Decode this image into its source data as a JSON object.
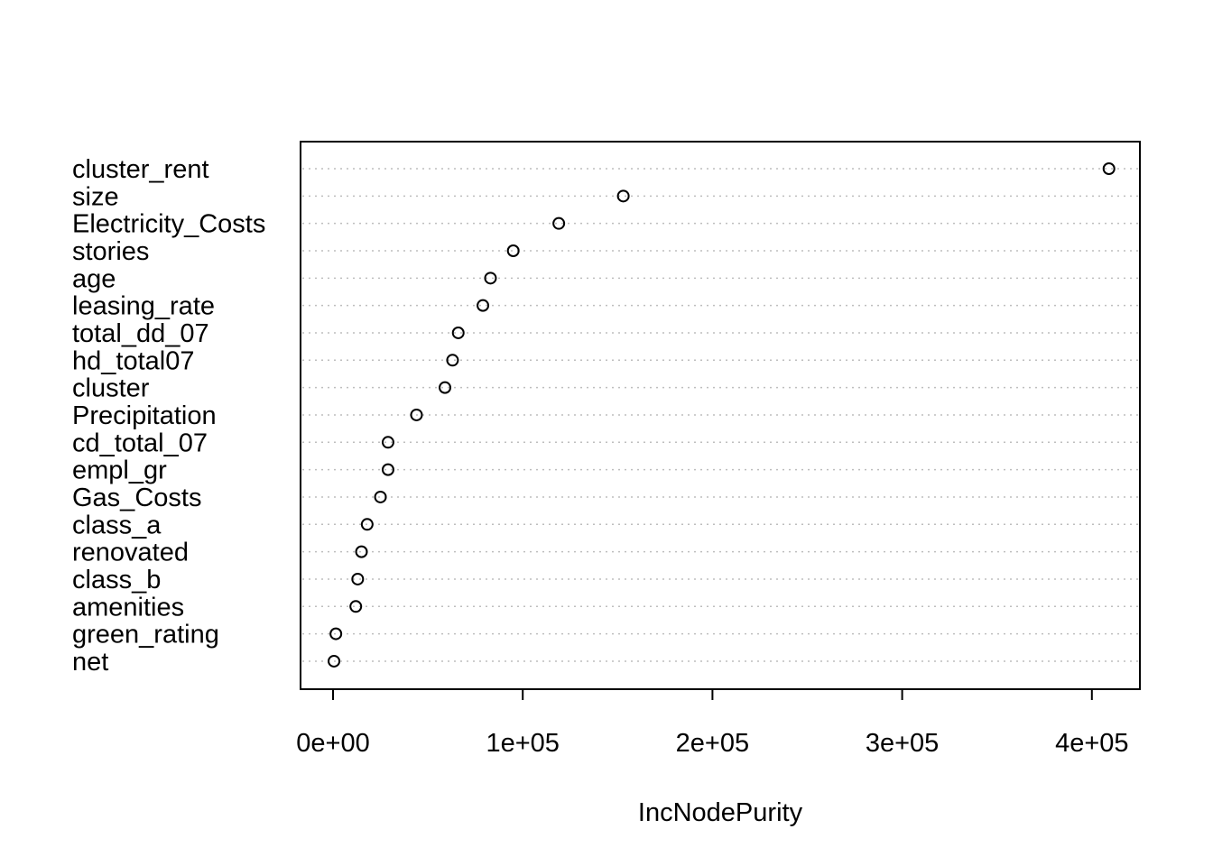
{
  "chart_data": {
    "type": "scatter",
    "xlabel": "IncNodePurity",
    "ylabel": "",
    "title": "",
    "xlim": [
      -8300,
      426000
    ],
    "x_ticks": [
      0,
      100000,
      200000,
      300000,
      400000
    ],
    "x_tick_labels": [
      "0e+00",
      "1e+05",
      "2e+05",
      "3e+05",
      "4e+05"
    ],
    "grid": true,
    "categories": [
      "cluster_rent",
      "size",
      "Electricity_Costs",
      "stories",
      "age",
      "leasing_rate",
      "total_dd_07",
      "hd_total07",
      "cluster",
      "Precipitation",
      "cd_total_07",
      "empl_gr",
      "Gas_Costs",
      "class_a",
      "renovated",
      "class_b",
      "amenities",
      "green_rating",
      "net"
    ],
    "values": [
      409000,
      153000,
      119000,
      95000,
      83000,
      79000,
      66000,
      63000,
      59000,
      44000,
      29000,
      29000,
      25000,
      18000,
      15000,
      13000,
      12000,
      1500,
      500
    ],
    "colors": {
      "axis": "#000000",
      "grid": "#bebebe",
      "point": "#000000"
    }
  }
}
